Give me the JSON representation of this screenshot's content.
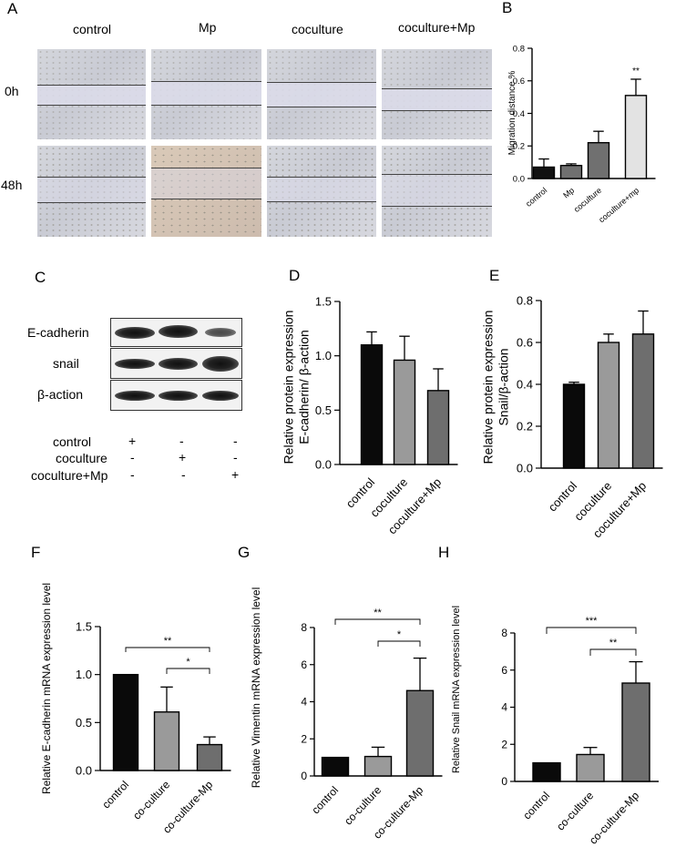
{
  "panels": {
    "A": {
      "letter": "A",
      "columns": [
        "control",
        "Mp",
        "coculture",
        "coculture+Mp"
      ],
      "rows": [
        "0h",
        "48h"
      ]
    },
    "C": {
      "letter": "C",
      "bands": [
        "E-cadherin",
        "snail",
        "β-action"
      ],
      "conditions": [
        {
          "label": "control",
          "signs": [
            "+",
            "-",
            "-"
          ]
        },
        {
          "label": "coculture",
          "signs": [
            "-",
            "+",
            "-"
          ]
        },
        {
          "label": "coculture+Mp",
          "signs": [
            "-",
            "-",
            "+"
          ]
        }
      ]
    }
  },
  "chart_data": [
    {
      "id": "B",
      "letter": "B",
      "type": "bar",
      "categories": [
        "control",
        "Mp",
        "coculture",
        "coculture+mp"
      ],
      "values": [
        0.07,
        0.08,
        0.22,
        0.51
      ],
      "errors": [
        0.05,
        0.01,
        0.07,
        0.1
      ],
      "bar_colors": [
        "#111111",
        "#707070",
        "#707070",
        "#e3e3e3"
      ],
      "ylabel": "Migration distance  %",
      "ylim": [
        0,
        0.8
      ],
      "yticks": [
        "0.0",
        "0.2",
        "0.4",
        "0.6",
        "0.8"
      ],
      "annotations": [
        {
          "bar": 3,
          "text": "**"
        }
      ]
    },
    {
      "id": "D",
      "letter": "D",
      "type": "bar",
      "categories": [
        "control",
        "coculture",
        "coculture+Mp"
      ],
      "values": [
        1.1,
        0.96,
        0.68
      ],
      "errors": [
        0.12,
        0.22,
        0.2
      ],
      "bar_colors": [
        "#0a0a0a",
        "#9a9a9a",
        "#6e6e6e"
      ],
      "ylabel": [
        "Relative protein expression",
        "E-cadherin/ β-action"
      ],
      "ylim": [
        0,
        1.5
      ],
      "yticks": [
        "0.0",
        "0.5",
        "1.0",
        "1.5"
      ]
    },
    {
      "id": "E",
      "letter": "E",
      "type": "bar",
      "categories": [
        "control",
        "coculture",
        "coculture+Mp"
      ],
      "values": [
        0.4,
        0.6,
        0.64
      ],
      "errors": [
        0.01,
        0.04,
        0.11
      ],
      "bar_colors": [
        "#0a0a0a",
        "#9a9a9a",
        "#6e6e6e"
      ],
      "ylabel": [
        "Relative protein expression",
        "Snail/β-action"
      ],
      "ylim": [
        0,
        0.8
      ],
      "yticks": [
        "0.0",
        "0.2",
        "0.4",
        "0.6",
        "0.8"
      ]
    },
    {
      "id": "F",
      "letter": "F",
      "type": "bar",
      "categories": [
        "control",
        "co-culture",
        "co-culture-Mp"
      ],
      "values": [
        1.0,
        0.61,
        0.27
      ],
      "errors": [
        0,
        0.26,
        0.08
      ],
      "bar_colors": [
        "#0a0a0a",
        "#9a9a9a",
        "#6e6e6e"
      ],
      "ylabel": "Relative E-cadherin mRNA expression level",
      "ylim": [
        0,
        1.5
      ],
      "yticks": [
        "0.0",
        "0.5",
        "1.0",
        "1.5"
      ],
      "significance": [
        {
          "from": 0,
          "to": 2,
          "text": "**"
        },
        {
          "from": 1,
          "to": 2,
          "text": "*"
        }
      ]
    },
    {
      "id": "G",
      "letter": "G",
      "type": "bar",
      "categories": [
        "control",
        "co-culture",
        "co-culture-Mp"
      ],
      "values": [
        1.0,
        1.05,
        4.6
      ],
      "errors": [
        0,
        0.5,
        1.75
      ],
      "bar_colors": [
        "#0a0a0a",
        "#9a9a9a",
        "#6e6e6e"
      ],
      "ylabel": "Relative  Vimentin  mRNA expression level",
      "ylim": [
        0,
        8
      ],
      "yticks": [
        "0",
        "2",
        "4",
        "6",
        "8"
      ],
      "significance": [
        {
          "from": 0,
          "to": 2,
          "text": "**"
        },
        {
          "from": 1,
          "to": 2,
          "text": "*"
        }
      ]
    },
    {
      "id": "H",
      "letter": "H",
      "type": "bar",
      "categories": [
        "control",
        "co-culture",
        "co-culture-Mp"
      ],
      "values": [
        1.0,
        1.45,
        5.3
      ],
      "errors": [
        0,
        0.38,
        1.15
      ],
      "bar_colors": [
        "#0a0a0a",
        "#9a9a9a",
        "#6e6e6e"
      ],
      "ylabel": "Relative Snail  mRNA expression level",
      "ylim": [
        0,
        8
      ],
      "yticks": [
        "0",
        "2",
        "4",
        "6",
        "8"
      ],
      "significance": [
        {
          "from": 0,
          "to": 2,
          "text": "***"
        },
        {
          "from": 1,
          "to": 2,
          "text": "**"
        }
      ]
    }
  ]
}
